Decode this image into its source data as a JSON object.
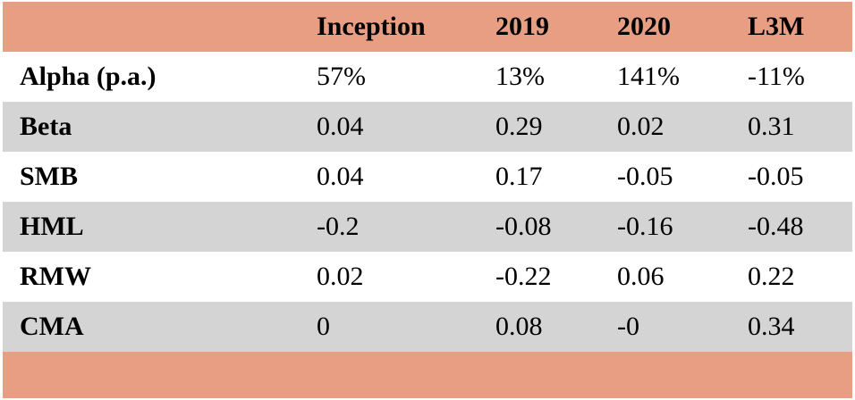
{
  "table": {
    "columns": [
      "",
      "Inception",
      "2019",
      "2020",
      "L3M"
    ],
    "rows": [
      {
        "label": "Alpha (p.a.)",
        "values": [
          "57%",
          "13%",
          "141%",
          "-11%"
        ]
      },
      {
        "label": "Beta",
        "values": [
          "0.04",
          "0.29",
          "0.02",
          "0.31"
        ]
      },
      {
        "label": "SMB",
        "values": [
          "0.04",
          "0.17",
          "-0.05",
          "-0.05"
        ]
      },
      {
        "label": "HML",
        "values": [
          "-0.2",
          "-0.08",
          "-0.16",
          "-0.48"
        ]
      },
      {
        "label": "RMW",
        "values": [
          "0.02",
          "-0.22",
          "0.06",
          "0.22"
        ]
      },
      {
        "label": "CMA",
        "values": [
          "0",
          "0.08",
          "-0",
          "0.34"
        ]
      }
    ]
  },
  "colors": {
    "header_bg": "#e89e82",
    "stripe_bg": "#d4d4d4",
    "row_bg": "#ffffff"
  }
}
